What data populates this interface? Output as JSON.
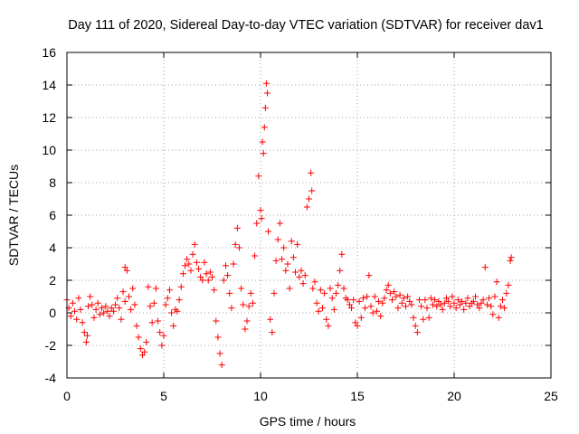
{
  "chart_data": {
    "type": "scatter",
    "title": "Day 111 of 2020, Sidereal Day-to-day VTEC variation (SDTVAR) for receiver dav1",
    "xlabel": "GPS time / hours",
    "ylabel": "SDTVAR / TECUs",
    "xlim": [
      0,
      25
    ],
    "ylim": [
      -4,
      16
    ],
    "xticks": [
      0,
      5,
      10,
      15,
      20,
      25
    ],
    "yticks": [
      -4,
      -2,
      0,
      2,
      4,
      6,
      8,
      10,
      12,
      14,
      16
    ],
    "grid": true,
    "marker": "+",
    "series": [
      {
        "name": "SDTVAR",
        "color": "#ff0000",
        "points": [
          [
            0.0,
            0.8
          ],
          [
            0.1,
            0.3
          ],
          [
            0.2,
            -0.2
          ],
          [
            0.3,
            0.6
          ],
          [
            0.4,
            0.1
          ],
          [
            0.5,
            -0.4
          ],
          [
            0.6,
            0.9
          ],
          [
            0.7,
            0.2
          ],
          [
            0.8,
            -0.6
          ],
          [
            0.9,
            -1.2
          ],
          [
            1.0,
            -1.8
          ],
          [
            1.05,
            -1.4
          ],
          [
            1.1,
            0.4
          ],
          [
            1.2,
            1.0
          ],
          [
            1.3,
            0.5
          ],
          [
            1.4,
            -0.3
          ],
          [
            1.5,
            0.2
          ],
          [
            1.6,
            0.6
          ],
          [
            1.7,
            -0.1
          ],
          [
            1.8,
            0.3
          ],
          [
            1.9,
            0.0
          ],
          [
            2.0,
            0.4
          ],
          [
            2.1,
            0.1
          ],
          [
            2.2,
            -0.2
          ],
          [
            2.3,
            0.3
          ],
          [
            2.4,
            0.1
          ],
          [
            2.5,
            0.5
          ],
          [
            2.6,
            0.9
          ],
          [
            2.7,
            0.3
          ],
          [
            2.8,
            -0.4
          ],
          [
            2.9,
            1.3
          ],
          [
            3.0,
            0.7
          ],
          [
            3.0,
            2.8
          ],
          [
            3.1,
            2.6
          ],
          [
            3.2,
            1.0
          ],
          [
            3.3,
            0.2
          ],
          [
            3.4,
            1.5
          ],
          [
            3.5,
            0.5
          ],
          [
            3.6,
            -0.8
          ],
          [
            3.7,
            -1.5
          ],
          [
            3.8,
            -2.2
          ],
          [
            3.9,
            -2.6
          ],
          [
            4.0,
            -2.4
          ],
          [
            4.1,
            -1.8
          ],
          [
            4.2,
            1.6
          ],
          [
            4.3,
            0.4
          ],
          [
            4.4,
            -0.6
          ],
          [
            4.5,
            0.6
          ],
          [
            4.6,
            1.5
          ],
          [
            4.7,
            -0.5
          ],
          [
            4.8,
            -1.2
          ],
          [
            4.9,
            -2.0
          ],
          [
            5.0,
            -1.4
          ],
          [
            5.1,
            0.5
          ],
          [
            5.2,
            0.9
          ],
          [
            5.3,
            1.4
          ],
          [
            5.4,
            0.0
          ],
          [
            5.5,
            -0.8
          ],
          [
            5.6,
            0.2
          ],
          [
            5.7,
            0.1
          ],
          [
            5.8,
            0.8
          ],
          [
            5.9,
            1.6
          ],
          [
            6.0,
            2.4
          ],
          [
            6.1,
            2.9
          ],
          [
            6.2,
            3.3
          ],
          [
            6.3,
            3.0
          ],
          [
            6.4,
            2.6
          ],
          [
            6.5,
            3.6
          ],
          [
            6.6,
            4.2
          ],
          [
            6.7,
            3.1
          ],
          [
            6.8,
            2.7
          ],
          [
            6.9,
            2.2
          ],
          [
            7.0,
            2.0
          ],
          [
            7.1,
            3.1
          ],
          [
            7.2,
            2.4
          ],
          [
            7.3,
            2.0
          ],
          [
            7.4,
            2.5
          ],
          [
            7.5,
            2.2
          ],
          [
            7.6,
            1.4
          ],
          [
            7.7,
            -0.5
          ],
          [
            7.8,
            -1.5
          ],
          [
            7.9,
            -2.5
          ],
          [
            8.0,
            -3.2
          ],
          [
            8.1,
            2.0
          ],
          [
            8.2,
            2.9
          ],
          [
            8.3,
            2.3
          ],
          [
            8.4,
            1.2
          ],
          [
            8.5,
            0.3
          ],
          [
            8.6,
            3.0
          ],
          [
            8.7,
            4.2
          ],
          [
            8.8,
            5.2
          ],
          [
            8.9,
            4.0
          ],
          [
            9.0,
            1.5
          ],
          [
            9.1,
            0.5
          ],
          [
            9.2,
            -1.0
          ],
          [
            9.3,
            -0.5
          ],
          [
            9.4,
            0.4
          ],
          [
            9.5,
            1.2
          ],
          [
            9.6,
            0.6
          ],
          [
            9.7,
            3.5
          ],
          [
            9.8,
            5.5
          ],
          [
            9.9,
            8.4
          ],
          [
            10.0,
            6.3
          ],
          [
            10.05,
            5.8
          ],
          [
            10.1,
            10.5
          ],
          [
            10.15,
            9.8
          ],
          [
            10.2,
            11.4
          ],
          [
            10.25,
            12.6
          ],
          [
            10.3,
            14.1
          ],
          [
            10.35,
            13.5
          ],
          [
            10.4,
            5.0
          ],
          [
            10.5,
            -0.4
          ],
          [
            10.6,
            -1.2
          ],
          [
            10.7,
            1.2
          ],
          [
            10.8,
            3.2
          ],
          [
            10.9,
            4.5
          ],
          [
            11.0,
            5.5
          ],
          [
            11.1,
            3.3
          ],
          [
            11.2,
            4.0
          ],
          [
            11.3,
            2.6
          ],
          [
            11.4,
            3.0
          ],
          [
            11.5,
            1.5
          ],
          [
            11.6,
            4.4
          ],
          [
            11.7,
            3.4
          ],
          [
            11.8,
            2.5
          ],
          [
            11.9,
            4.2
          ],
          [
            12.0,
            2.2
          ],
          [
            12.1,
            2.6
          ],
          [
            12.2,
            1.8
          ],
          [
            12.3,
            2.3
          ],
          [
            12.4,
            6.5
          ],
          [
            12.5,
            7.0
          ],
          [
            12.6,
            8.6
          ],
          [
            12.65,
            7.5
          ],
          [
            12.7,
            1.5
          ],
          [
            12.8,
            1.9
          ],
          [
            12.9,
            0.6
          ],
          [
            13.0,
            0.1
          ],
          [
            13.1,
            1.4
          ],
          [
            13.2,
            0.3
          ],
          [
            13.3,
            1.2
          ],
          [
            13.4,
            -0.4
          ],
          [
            13.5,
            -0.8
          ],
          [
            13.6,
            1.5
          ],
          [
            13.7,
            0.9
          ],
          [
            13.8,
            0.2
          ],
          [
            13.9,
            1.2
          ],
          [
            14.0,
            1.7
          ],
          [
            14.1,
            2.6
          ],
          [
            14.2,
            3.6
          ],
          [
            14.3,
            1.5
          ],
          [
            14.4,
            0.9
          ],
          [
            14.5,
            0.8
          ],
          [
            14.6,
            0.5
          ],
          [
            14.7,
            0.3
          ],
          [
            14.8,
            0.8
          ],
          [
            14.9,
            -0.6
          ],
          [
            15.0,
            -0.8
          ],
          [
            15.1,
            0.7
          ],
          [
            15.2,
            -0.3
          ],
          [
            15.3,
            0.9
          ],
          [
            15.4,
            0.3
          ],
          [
            15.5,
            1.0
          ],
          [
            15.6,
            2.3
          ],
          [
            15.7,
            0.4
          ],
          [
            15.8,
            0.0
          ],
          [
            15.9,
            1.0
          ],
          [
            16.0,
            0.1
          ],
          [
            16.1,
            0.7
          ],
          [
            16.2,
            -0.2
          ],
          [
            16.3,
            0.6
          ],
          [
            16.4,
            0.9
          ],
          [
            16.5,
            1.4
          ],
          [
            16.6,
            1.7
          ],
          [
            16.7,
            1.2
          ],
          [
            16.8,
            0.8
          ],
          [
            16.9,
            1.3
          ],
          [
            17.0,
            1.0
          ],
          [
            17.1,
            0.3
          ],
          [
            17.2,
            1.1
          ],
          [
            17.3,
            0.6
          ],
          [
            17.4,
            0.9
          ],
          [
            17.5,
            0.4
          ],
          [
            17.6,
            1.0
          ],
          [
            17.7,
            0.7
          ],
          [
            17.8,
            0.5
          ],
          [
            17.9,
            -0.3
          ],
          [
            18.0,
            -0.8
          ],
          [
            18.1,
            -1.2
          ],
          [
            18.2,
            0.8
          ],
          [
            18.3,
            0.4
          ],
          [
            18.4,
            -0.4
          ],
          [
            18.5,
            0.8
          ],
          [
            18.6,
            0.3
          ],
          [
            18.7,
            -0.3
          ],
          [
            18.8,
            0.9
          ],
          [
            18.9,
            0.5
          ],
          [
            19.0,
            0.8
          ],
          [
            19.1,
            0.4
          ],
          [
            19.2,
            0.7
          ],
          [
            19.3,
            0.5
          ],
          [
            19.4,
            0.2
          ],
          [
            19.5,
            0.6
          ],
          [
            19.6,
            0.9
          ],
          [
            19.7,
            0.7
          ],
          [
            19.8,
            0.4
          ],
          [
            19.9,
            1.0
          ],
          [
            20.0,
            0.6
          ],
          [
            20.1,
            0.3
          ],
          [
            20.2,
            0.8
          ],
          [
            20.3,
            0.5
          ],
          [
            20.4,
            0.7
          ],
          [
            20.5,
            0.2
          ],
          [
            20.6,
            0.6
          ],
          [
            20.7,
            0.9
          ],
          [
            20.8,
            0.4
          ],
          [
            20.9,
            0.6
          ],
          [
            21.0,
            0.7
          ],
          [
            21.1,
            1.0
          ],
          [
            21.2,
            0.5
          ],
          [
            21.3,
            0.3
          ],
          [
            21.4,
            0.6
          ],
          [
            21.5,
            0.8
          ],
          [
            21.6,
            2.8
          ],
          [
            21.7,
            0.5
          ],
          [
            21.8,
            0.9
          ],
          [
            21.9,
            0.4
          ],
          [
            22.0,
            -0.1
          ],
          [
            22.1,
            1.0
          ],
          [
            22.2,
            1.9
          ],
          [
            22.3,
            -0.3
          ],
          [
            22.4,
            0.4
          ],
          [
            22.5,
            0.8
          ],
          [
            22.6,
            0.3
          ],
          [
            22.7,
            1.2
          ],
          [
            22.8,
            1.7
          ],
          [
            22.9,
            3.2
          ],
          [
            22.95,
            3.4
          ]
        ]
      }
    ]
  }
}
